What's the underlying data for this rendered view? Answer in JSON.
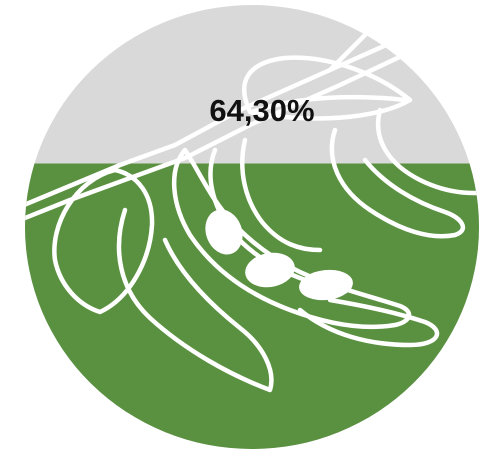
{
  "chart_data": {
    "type": "pictorial-fill",
    "value": 64.3,
    "value_label": "64,30%",
    "unit": "%",
    "max": 100,
    "icon": "soybean-plant-icon",
    "colors": {
      "filled": "#5a9140",
      "empty": "#d9d9d9",
      "line_art": "#ffffff",
      "label": "#111111"
    }
  }
}
